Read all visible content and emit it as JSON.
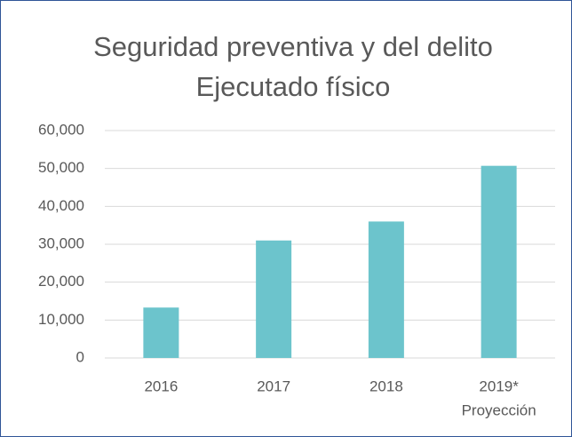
{
  "chart_data": {
    "type": "bar",
    "title": [
      "Seguridad preventiva y del delito",
      "Ejecutado físico"
    ],
    "categories": [
      "2016",
      "2017",
      "2018",
      "2019*"
    ],
    "values": [
      13300,
      31000,
      36000,
      50700
    ],
    "color": "#6cc4cc",
    "annotations": [
      {
        "category": 3,
        "text": "Proyección"
      }
    ],
    "ylim": [
      0,
      60000
    ],
    "yticks": [
      0,
      {
        "value": 10000,
        "label": "10,000"
      },
      {
        "value": 20000,
        "label": "20,000"
      },
      {
        "value": 30000,
        "label": "30,000"
      },
      {
        "value": 40000,
        "label": "40,000"
      },
      {
        "value": 50000,
        "label": "50,000"
      },
      {
        "value": 60000,
        "label": "60,000"
      }
    ],
    "grid": true
  }
}
